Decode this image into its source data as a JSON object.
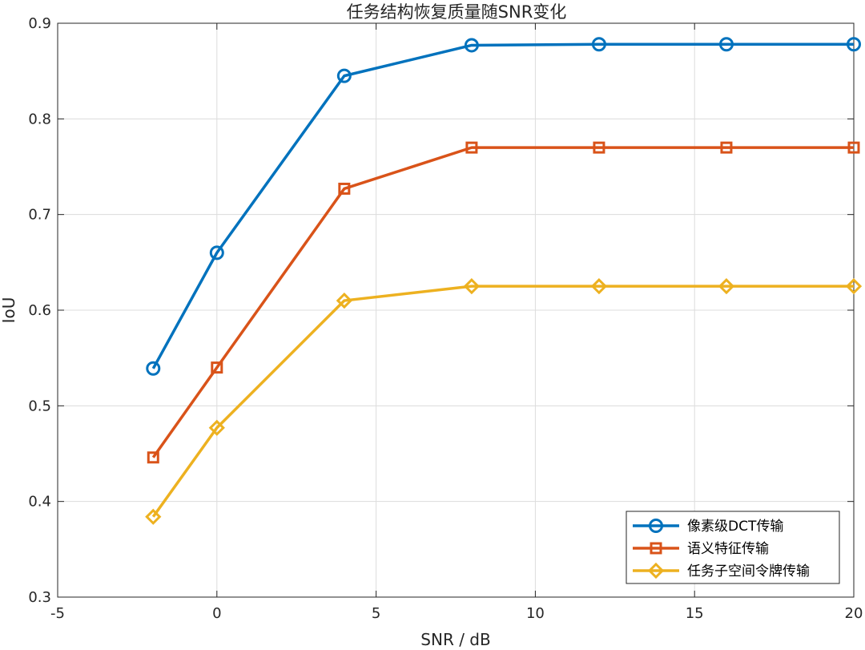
{
  "chart_data": {
    "type": "line",
    "title": "任务结构恢复质量随SNR变化",
    "xlabel": "SNR / dB",
    "ylabel": "IoU",
    "xlim": [
      -5,
      20
    ],
    "ylim": [
      0.3,
      0.9
    ],
    "xticks": [
      "-5",
      "0",
      "5",
      "10",
      "15",
      "20"
    ],
    "yticks": [
      "0.3",
      "0.4",
      "0.5",
      "0.6",
      "0.7",
      "0.8",
      "0.9"
    ],
    "grid": true,
    "legend_position": "bottom-right",
    "x": [
      -2,
      0,
      4,
      8,
      12,
      16,
      20
    ],
    "series": [
      {
        "name": "像素级DCT传输",
        "values": [
          0.539,
          0.66,
          0.845,
          0.877,
          0.878,
          0.878,
          0.878
        ],
        "color": "#0072BD",
        "marker": "circle"
      },
      {
        "name": "语义特征传输",
        "values": [
          0.446,
          0.54,
          0.727,
          0.77,
          0.77,
          0.77,
          0.77
        ],
        "color": "#D95319",
        "marker": "square"
      },
      {
        "name": "任务子空间令牌传输",
        "values": [
          0.384,
          0.477,
          0.61,
          0.625,
          0.625,
          0.625,
          0.625
        ],
        "color": "#EDB120",
        "marker": "diamond"
      }
    ]
  }
}
